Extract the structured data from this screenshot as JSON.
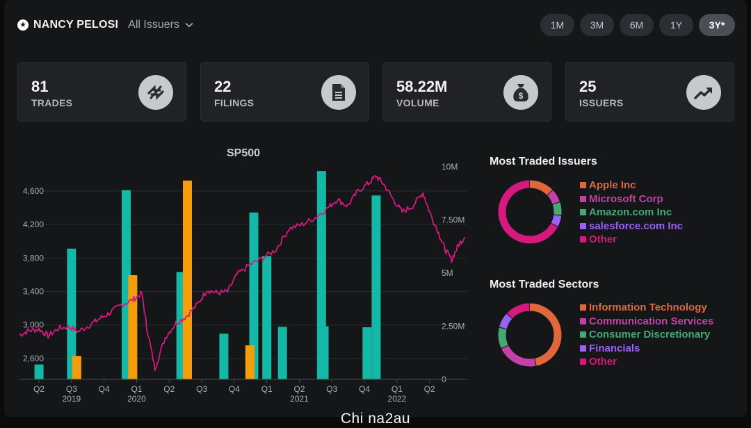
{
  "header": {
    "politician_name": "NANCY PELOSI",
    "issuer_filter": "All Issuers",
    "periods": [
      "1M",
      "3M",
      "6M",
      "1Y",
      "3Y*"
    ],
    "active_period": "3Y*"
  },
  "stats": [
    {
      "value": "81",
      "label": "TRADES",
      "icon": "arrows-exchange-icon"
    },
    {
      "value": "22",
      "label": "FILINGS",
      "icon": "document-icon"
    },
    {
      "value": "58.22M",
      "label": "VOLUME",
      "icon": "money-bag-icon"
    },
    {
      "value": "25",
      "label": "ISSUERS",
      "icon": "trending-up-icon"
    }
  ],
  "chart_data": {
    "type": "bar",
    "title": "SP500",
    "left_axis_ticks": [
      "4,600",
      "4,200",
      "3,800",
      "3,400",
      "3,000",
      "2,600"
    ],
    "right_axis_ticks": [
      "10M",
      "7.50M",
      "5M",
      "2.50M",
      "0"
    ],
    "y_left_range": [
      2350,
      4890
    ],
    "y_right_range": [
      0,
      10000000
    ],
    "quarter_labels": [
      "Q2",
      "Q3",
      "Q4",
      "Q1",
      "Q2",
      "Q3",
      "Q4",
      "Q1",
      "Q2",
      "Q3",
      "Q4",
      "Q1",
      "Q2"
    ],
    "year_labels": [
      "2019",
      "2020",
      "2021",
      "2022"
    ],
    "series": [
      {
        "color": "#14b8a6",
        "values": [
          {
            "t": 2019.33,
            "v": 700000
          },
          {
            "t": 2019.58,
            "v": 6150000
          },
          {
            "t": 2020.0,
            "v": 8900000
          },
          {
            "t": 2020.42,
            "v": 5050000
          },
          {
            "t": 2020.75,
            "v": 2150000
          },
          {
            "t": 2021.08,
            "v": 5800000
          },
          {
            "t": 2021.5,
            "v": 9800000
          },
          {
            "t": 2021.92,
            "v": 8650000
          },
          {
            "t": 2021.85,
            "v": 2450000
          },
          {
            "t": 2021.2,
            "v": 2470000
          },
          {
            "t": 2020.98,
            "v": 7850000
          },
          {
            "t": 2021.52,
            "v": 2500000
          }
        ]
      },
      {
        "color": "#f59e0b",
        "values": [
          {
            "t": 2019.62,
            "v": 1100000
          },
          {
            "t": 2020.05,
            "v": 4900000
          },
          {
            "t": 2020.47,
            "v": 9350000
          },
          {
            "t": 2020.95,
            "v": 1600000
          }
        ]
      }
    ],
    "line_color": "#d6197e"
  },
  "issuers": {
    "title": "Most Traded Issuers",
    "items": [
      {
        "label": "Apple Inc",
        "color": "#e0663b",
        "share": 0.13
      },
      {
        "label": "Microsoft Corp",
        "color": "#c640a8",
        "share": 0.07
      },
      {
        "label": "Amazon.com Inc",
        "color": "#46a873",
        "share": 0.07
      },
      {
        "label": "salesforce.com Inc",
        "color": "#9a61f5",
        "share": 0.06
      },
      {
        "label": "Other",
        "color": "#d6197e",
        "share": 0.67
      }
    ]
  },
  "sectors": {
    "title": "Most Traded Sectors",
    "items": [
      {
        "label": "Information Technology",
        "color": "#e0663b",
        "share": 0.47
      },
      {
        "label": "Communication Services",
        "color": "#c640a8",
        "share": 0.21
      },
      {
        "label": "Consumer Discretionary",
        "color": "#46a873",
        "share": 0.11
      },
      {
        "label": "Financials",
        "color": "#9a61f5",
        "share": 0.08
      },
      {
        "label": "Other",
        "color": "#d6197e",
        "share": 0.13
      }
    ]
  },
  "watermark": "Chi na2au"
}
